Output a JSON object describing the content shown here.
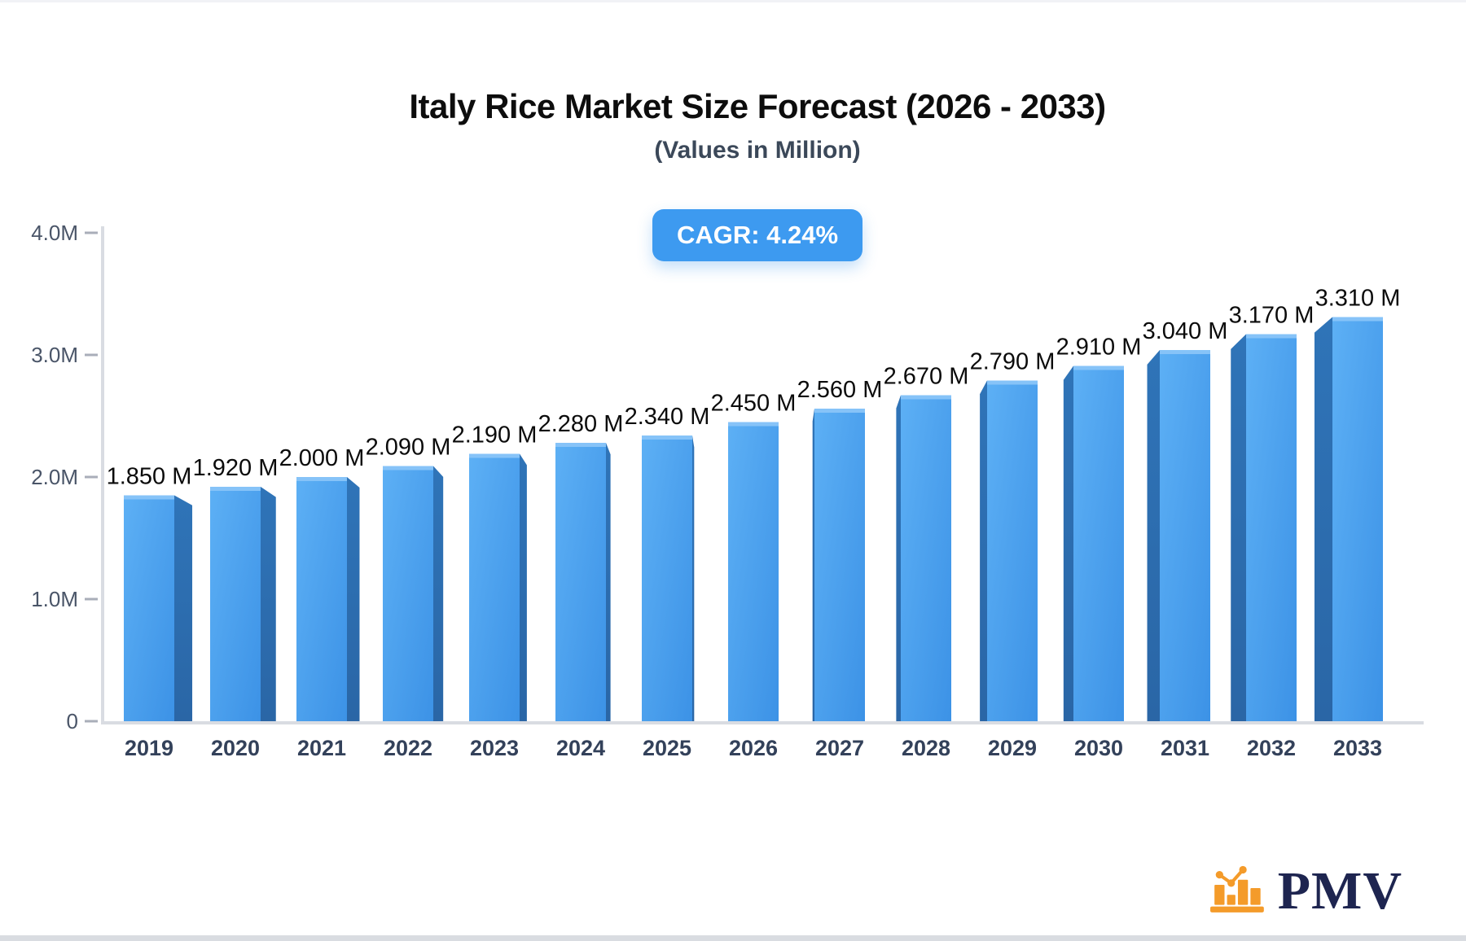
{
  "header": {
    "title": "Italy Rice Market Size Forecast (2026 - 2033)",
    "subtitle": "(Values in Million)",
    "badge": "CAGR: 4.24%"
  },
  "chart_data": {
    "type": "bar",
    "title": "Italy Rice Market Size Forecast (2026 - 2033)",
    "subtitle": "(Values in Million)",
    "unit": "Million",
    "cagr_label": "CAGR: 4.24%",
    "categories": [
      "2019",
      "2020",
      "2021",
      "2022",
      "2023",
      "2024",
      "2025",
      "2026",
      "2027",
      "2028",
      "2029",
      "2030",
      "2031",
      "2032",
      "2033"
    ],
    "values": [
      1.85,
      1.92,
      2.0,
      2.09,
      2.19,
      2.28,
      2.34,
      2.45,
      2.56,
      2.67,
      2.79,
      2.91,
      3.04,
      3.17,
      3.31
    ],
    "value_labels": [
      "1.850 M",
      "1.920 M",
      "2.000 M",
      "2.090 M",
      "2.190 M",
      "2.280 M",
      "2.340 M",
      "2.450 M",
      "2.560 M",
      "2.670 M",
      "2.790 M",
      "2.910 M",
      "3.040 M",
      "3.170 M",
      "3.310 M"
    ],
    "y_ticks": [
      {
        "value": 0,
        "label": "0"
      },
      {
        "value": 1,
        "label": "1.0M"
      },
      {
        "value": 2,
        "label": "2.0M"
      },
      {
        "value": 3,
        "label": "3.0M"
      },
      {
        "value": 4,
        "label": "4.0M"
      }
    ],
    "ylim": [
      0,
      4.0
    ],
    "grid": false,
    "legend": false,
    "bar_style": "3d-perspective"
  },
  "colors": {
    "bar_front_light": "#5db0f5",
    "bar_front_dark": "#3c92e6",
    "bar_side_top": "#2f74b8",
    "bar_side_bottom": "#2a66a6",
    "bar_top_highlight": "#86c3f8",
    "badge_bg": "#3d9af0",
    "badge_text": "#ffffff",
    "axis_line": "#d9dce2",
    "tick": "#a9aeb9",
    "y_label": "#4a5568",
    "x_label": "#33415a",
    "value_label": "#0b0b0b",
    "logo_icon": "#f49b2a",
    "logo_text": "#1e2550"
  },
  "logo": {
    "text": "PMV"
  }
}
